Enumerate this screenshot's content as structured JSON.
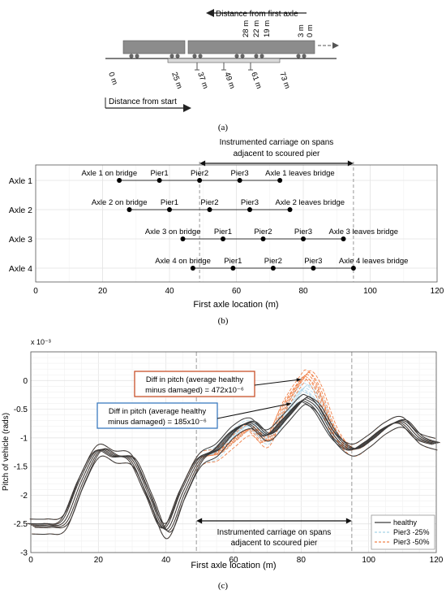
{
  "panel_a": {
    "caption": "(a)",
    "top_arrow_label": "Distance from first axle",
    "top_marks": [
      "28 m",
      "22 m",
      "19 m",
      "3 m",
      "0 m"
    ],
    "bottom_marks": [
      "0 m",
      "25 m",
      "37 m",
      "49 m",
      "61 m",
      "73 m"
    ],
    "bottom_arrow_label": "Distance from start"
  },
  "chart_data": [
    {
      "type": "scatter",
      "panel": "(b)",
      "xlabel": "First axle location (m)",
      "xlim": [
        0,
        120
      ],
      "xticks": [
        0,
        20,
        40,
        60,
        80,
        100,
        120
      ],
      "grid": true,
      "categories": [
        "Axle 1",
        "Axle 2",
        "Axle 3",
        "Axle 4"
      ],
      "annotation": {
        "line1": "Instrumented carriage on spans",
        "line2": "adjacent to scoured pier",
        "x_range": [
          49,
          95
        ]
      },
      "series": [
        {
          "row": "Axle 1",
          "x": [
            25,
            37,
            49,
            61,
            73
          ],
          "labels": [
            "Axle 1 on bridge",
            "Pier1",
            "Pier2",
            "Pier3",
            "Axle 1 leaves bridge"
          ]
        },
        {
          "row": "Axle 2",
          "x": [
            28,
            40,
            52,
            64,
            76
          ],
          "labels": [
            "Axle 2 on bridge",
            "Pier1",
            "Pier2",
            "Pier3",
            "Axle 2 leaves bridge"
          ]
        },
        {
          "row": "Axle 3",
          "x": [
            44,
            56,
            68,
            80,
            92
          ],
          "labels": [
            "Axle 3 on bridge",
            "Pier1",
            "Pier2",
            "Pier3",
            "Axle 3 leaves bridge"
          ]
        },
        {
          "row": "Axle 4",
          "x": [
            47,
            59,
            71,
            83,
            95
          ],
          "labels": [
            "Axle 4 on bridge",
            "Pier1",
            "Pier2",
            "Pier3",
            "Axle 4 leaves bridge"
          ]
        }
      ]
    },
    {
      "type": "line",
      "panel": "(c)",
      "xlabel": "First axle location (m)",
      "ylabel": "Pitch of vehicle (rads)",
      "exponent_label": "x 10⁻³",
      "xlim": [
        0,
        120
      ],
      "ylim": [
        -3,
        0.5
      ],
      "xticks": [
        0,
        20,
        40,
        60,
        80,
        100,
        120
      ],
      "yticks": [
        -3,
        -2.5,
        -2,
        -1.5,
        -1,
        -0.5,
        0
      ],
      "grid": true,
      "legend_position": "bottom-right",
      "legend": [
        "healthy",
        "Pier3 -25%",
        "Pier3 -50%"
      ],
      "colors": {
        "healthy": "#3a3a3a",
        "pier25": "#a8d3e8",
        "pier50": "#f0824a"
      },
      "annotations": {
        "orange_box": {
          "line1": "Diff in pitch (average healthy",
          "line2": "minus damaged) = 472x10⁻⁶",
          "border": "#c8502a"
        },
        "blue_box": {
          "line1": "Diff in pitch (average healthy",
          "line2": "minus damaged) = 185x10⁻⁶",
          "border": "#3b7bbf"
        },
        "carriage": {
          "line1": "Instrumented carriage on spans",
          "line2": "adjacent to scoured pier",
          "x_range": [
            49,
            95
          ]
        }
      },
      "series": [
        {
          "name": "healthy",
          "x": [
            0,
            5,
            10,
            15,
            20,
            25,
            30,
            35,
            40,
            45,
            50,
            55,
            60,
            65,
            70,
            75,
            80,
            82,
            85,
            90,
            95,
            100,
            105,
            110,
            115,
            120
          ],
          "values": [
            -2.52,
            -2.52,
            -2.45,
            -1.75,
            -1.22,
            -1.32,
            -1.38,
            -2.0,
            -2.6,
            -1.95,
            -1.38,
            -1.2,
            -0.88,
            -0.74,
            -0.95,
            -0.68,
            -0.36,
            -0.35,
            -0.5,
            -0.98,
            -1.2,
            -1.05,
            -0.82,
            -0.72,
            -1.0,
            -1.1
          ]
        },
        {
          "name": "Pier3 -25%",
          "x": [
            0,
            5,
            10,
            15,
            20,
            25,
            30,
            35,
            40,
            45,
            50,
            55,
            60,
            65,
            70,
            75,
            80,
            82,
            85,
            90,
            95,
            100,
            105,
            110,
            115,
            120
          ],
          "values": [
            -2.52,
            -2.52,
            -2.45,
            -1.75,
            -1.22,
            -1.32,
            -1.38,
            -2.0,
            -2.6,
            -1.95,
            -1.38,
            -1.25,
            -0.95,
            -0.78,
            -1.0,
            -0.6,
            -0.17,
            -0.15,
            -0.33,
            -0.96,
            -1.2,
            -1.05,
            -0.82,
            -0.72,
            -1.0,
            -1.1
          ]
        },
        {
          "name": "Pier3 -50%",
          "x": [
            0,
            5,
            10,
            15,
            20,
            25,
            30,
            35,
            40,
            45,
            50,
            55,
            60,
            65,
            70,
            75,
            80,
            82,
            85,
            90,
            95,
            100,
            105,
            110,
            115,
            120
          ],
          "values": [
            -2.52,
            -2.52,
            -2.45,
            -1.75,
            -1.22,
            -1.32,
            -1.38,
            -2.0,
            -2.6,
            -1.95,
            -1.38,
            -1.28,
            -1.05,
            -0.85,
            -1.05,
            -0.45,
            0.0,
            0.1,
            -0.15,
            -0.9,
            -1.2,
            -1.05,
            -0.82,
            -0.72,
            -1.0,
            -1.1
          ]
        }
      ]
    }
  ]
}
